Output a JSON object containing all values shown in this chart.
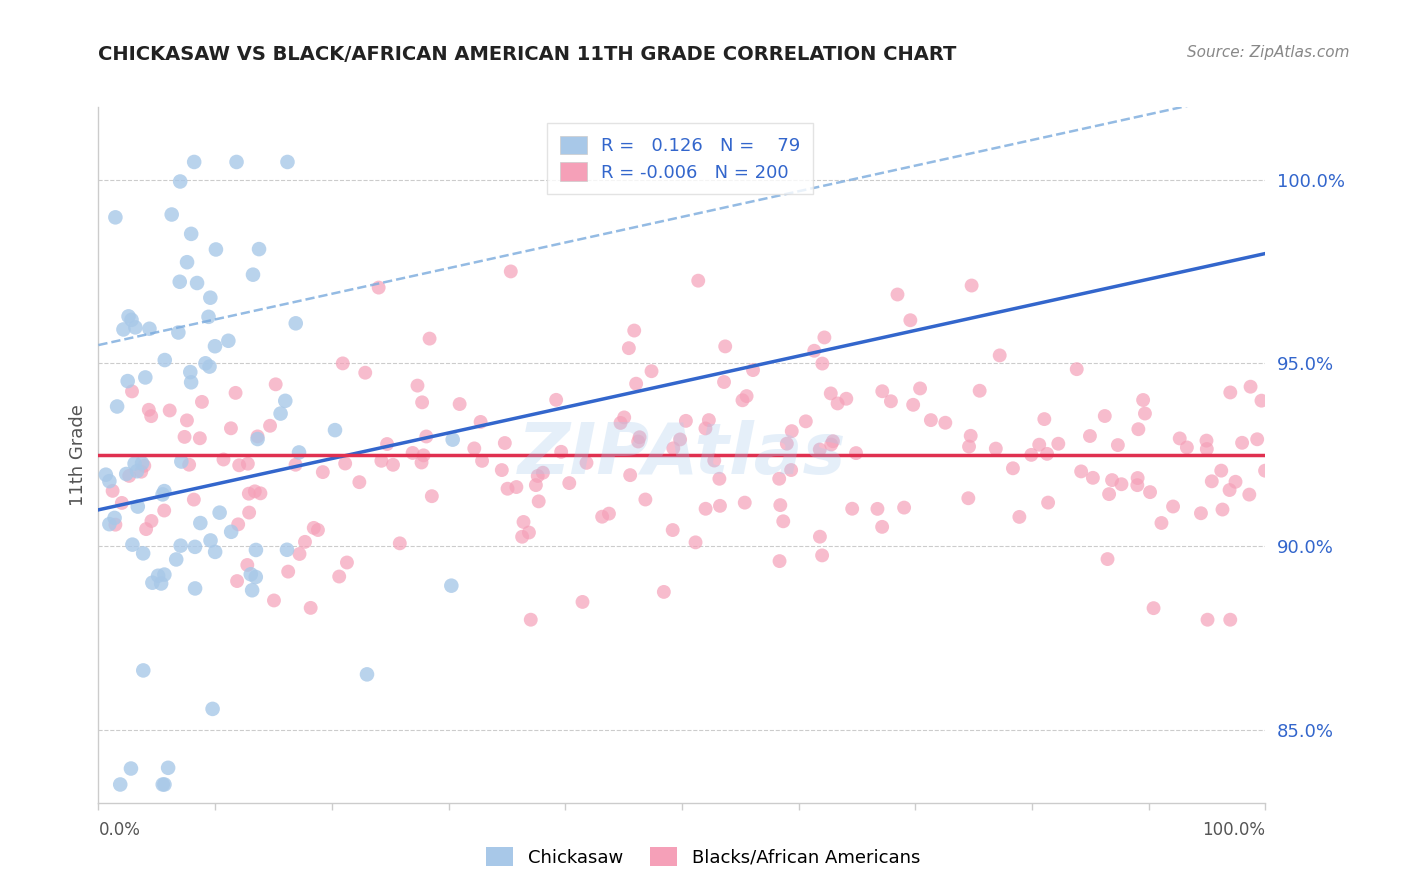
{
  "title": "CHICKASAW VS BLACK/AFRICAN AMERICAN 11TH GRADE CORRELATION CHART",
  "source": "Source: ZipAtlas.com",
  "ylabel": "11th Grade",
  "yticks": [
    85.0,
    90.0,
    95.0,
    100.0
  ],
  "xlim": [
    0.0,
    100.0
  ],
  "ylim": [
    83.0,
    102.0
  ],
  "chickasaw_R": 0.126,
  "chickasaw_N": 79,
  "black_R": -0.006,
  "black_N": 200,
  "chickasaw_color": "#a8c8e8",
  "black_color": "#f5a0b8",
  "trend_chickasaw_color": "#3366cc",
  "trend_chickasaw_dashed_color": "#7aaadd",
  "trend_black_color": "#e03050",
  "background_color": "#ffffff",
  "watermark": "ZIPAtlas",
  "legend_label_chickasaw": "Chickasaw",
  "legend_label_black": "Blacks/African Americans",
  "grid_color": "#cccccc",
  "label_color": "#3366cc",
  "title_color": "#222222",
  "source_color": "#888888"
}
